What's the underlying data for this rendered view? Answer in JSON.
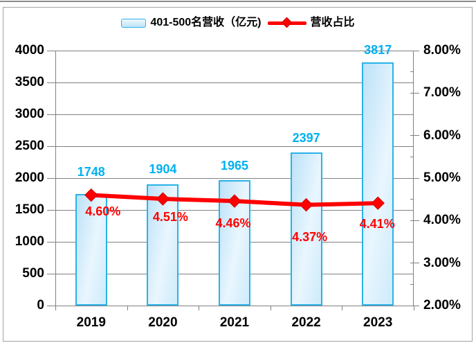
{
  "colors": {
    "bar_fill_start": "#BCE2F8",
    "bar_fill_mid": "#E9F6FE",
    "bar_fill_end": "#CDEBFA",
    "bar_border": "#29B2E8",
    "bar_value_label": "#00B0F0",
    "line": "#FF0000",
    "line_label": "#FF0000",
    "grid": "#808080",
    "axis_text": "#000000",
    "frame_border": "#A3A3A3"
  },
  "legend": {
    "items": [
      {
        "id": "revenue-bars",
        "label": "401-500名营收（亿元)"
      },
      {
        "id": "revenue-share",
        "label": "营收占比"
      }
    ]
  },
  "chart_data": {
    "type": "combo-bar-line",
    "categories": [
      "2019",
      "2020",
      "2021",
      "2022",
      "2023"
    ],
    "series": [
      {
        "name": "401-500名营收（亿元)",
        "type": "bar",
        "axis": "left",
        "values": [
          1748,
          1904,
          1965,
          2397,
          3817
        ],
        "data_labels": [
          "1748",
          "1904",
          "1965",
          "2397",
          "3817"
        ]
      },
      {
        "name": "营收占比",
        "type": "line",
        "axis": "right",
        "marker": "diamond",
        "values": [
          4.6,
          4.51,
          4.46,
          4.37,
          4.41
        ],
        "data_labels": [
          "4.60%",
          "4.51%",
          "4.46%",
          "4.37%",
          "4.41%"
        ]
      }
    ],
    "left_axis": {
      "min": 0,
      "max": 4000,
      "step": 500,
      "tick_labels": [
        "0",
        "500",
        "1000",
        "1500",
        "2000",
        "2500",
        "3000",
        "3500",
        "4000"
      ]
    },
    "right_axis": {
      "min": 2,
      "max": 8,
      "step": 1,
      "minor_step": 0.5,
      "tick_labels": [
        "2.00%",
        "3.00%",
        "4.00%",
        "5.00%",
        "6.00%",
        "7.00%",
        "8.00%"
      ]
    },
    "grid": true,
    "legend_position": "top",
    "label_offsets": {
      "bar_label_dy": [
        32,
        22,
        21,
        21,
        18
      ],
      "line_label_dx": [
        17,
        11,
        -2,
        5,
        -1
      ],
      "line_label_dy": [
        23,
        26,
        32,
        46,
        30
      ]
    }
  }
}
